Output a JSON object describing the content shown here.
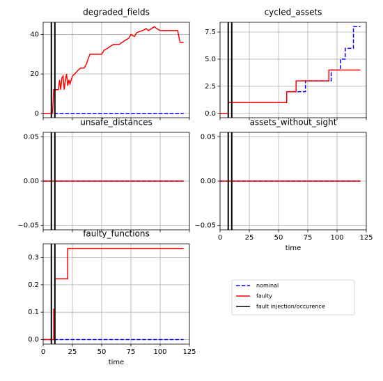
{
  "chart_data": [
    {
      "type": "line",
      "title": "degraded_fields",
      "drawstyle": "default",
      "x": [
        0,
        8,
        9,
        13,
        14,
        15,
        16,
        17,
        18,
        19,
        20,
        21,
        22,
        23,
        25,
        27,
        30,
        32,
        35,
        37,
        38,
        40,
        50,
        52,
        55,
        60,
        65,
        70,
        73,
        75,
        78,
        80,
        85,
        88,
        90,
        95,
        97,
        100,
        115,
        117,
        120
      ],
      "series": [
        {
          "name": "nominal",
          "color": "#0000ff",
          "dashed": true,
          "values": [
            0,
            0,
            0,
            0,
            0,
            0,
            0,
            0,
            0,
            0,
            0,
            0,
            0,
            0,
            0,
            0,
            0,
            0,
            0,
            0,
            0,
            0,
            0,
            0,
            0,
            0,
            0,
            0,
            0,
            0,
            0,
            0,
            0,
            0,
            0,
            0,
            0,
            0,
            0,
            0,
            0
          ]
        },
        {
          "name": "faulty",
          "color": "#ff0000",
          "dashed": false,
          "values": [
            0,
            0,
            12,
            12,
            17,
            12,
            18,
            19,
            12,
            17,
            20,
            14,
            17,
            15,
            19,
            20,
            22,
            23,
            23,
            25,
            27,
            30,
            30,
            32,
            33,
            35,
            35,
            37,
            38,
            40,
            39,
            41,
            42,
            43,
            42,
            44,
            43,
            42,
            42,
            36,
            36
          ]
        }
      ],
      "xlim": [
        0,
        125
      ],
      "xticks": [
        0,
        25,
        50,
        75,
        100,
        125
      ],
      "show_xticklabels": false,
      "ylim": [
        -2.2,
        46.2
      ],
      "yticks": [
        0,
        20,
        40
      ],
      "grid": true
    },
    {
      "type": "line",
      "title": "cycled_assets",
      "drawstyle": "steps-post",
      "x": [
        0,
        7,
        57,
        65,
        73,
        93,
        95,
        103,
        107,
        114,
        120
      ],
      "series": [
        {
          "name": "nominal",
          "color": "#0000ff",
          "dashed": true,
          "values": [
            0,
            1,
            2,
            2,
            3,
            3,
            4,
            5,
            6,
            8,
            8
          ]
        },
        {
          "name": "faulty",
          "color": "#ff0000",
          "dashed": false,
          "values": [
            0,
            1,
            2,
            3,
            3,
            4,
            4,
            4,
            4,
            4,
            4
          ]
        }
      ],
      "xlim": [
        0,
        125
      ],
      "xticks": [
        0,
        25,
        50,
        75,
        100,
        125
      ],
      "show_xticklabels": false,
      "ylim": [
        -0.4,
        8.4
      ],
      "yticks": [
        {
          "value": 0,
          "label": "0.0"
        },
        2.5,
        {
          "value": 5,
          "label": "5.0"
        },
        7.5
      ],
      "grid": true
    },
    {
      "type": "line",
      "title": "unsafe_distances",
      "drawstyle": "default",
      "x": [
        0,
        120
      ],
      "series": [
        {
          "name": "nominal",
          "color": "#0000ff",
          "dashed": true,
          "values": [
            0,
            0
          ]
        },
        {
          "name": "faulty",
          "color": "#ff0000",
          "dashed": false,
          "values": [
            0,
            0
          ]
        }
      ],
      "xlim": [
        0,
        125
      ],
      "xticks": [
        0,
        25,
        50,
        75,
        100,
        125
      ],
      "show_xticklabels": false,
      "ylim": [
        -0.055,
        0.055
      ],
      "yticks": [
        {
          "value": -0.05,
          "label": "−0.05"
        },
        {
          "value": 0,
          "label": "0.00"
        },
        0.05
      ],
      "grid": true
    },
    {
      "type": "line",
      "title": "assets_without_sight",
      "drawstyle": "default",
      "xlabel": "time",
      "x": [
        0,
        120
      ],
      "series": [
        {
          "name": "nominal",
          "color": "#0000ff",
          "dashed": true,
          "values": [
            0,
            0
          ]
        },
        {
          "name": "faulty",
          "color": "#ff0000",
          "dashed": false,
          "values": [
            0,
            0
          ]
        }
      ],
      "xlim": [
        0,
        125
      ],
      "xticks": [
        0,
        25,
        50,
        75,
        100,
        125
      ],
      "show_xticklabels": true,
      "ylim": [
        -0.055,
        0.055
      ],
      "yticks": [
        {
          "value": -0.05,
          "label": "−0.05"
        },
        {
          "value": 0,
          "label": "0.00"
        },
        0.05
      ],
      "grid": true
    },
    {
      "type": "line",
      "title": "faulty_functions",
      "drawstyle": "steps-post",
      "xlabel": "time",
      "x": [
        0,
        9,
        10,
        21,
        120
      ],
      "series": [
        {
          "name": "nominal",
          "color": "#0000ff",
          "dashed": true,
          "values": [
            0,
            0,
            0,
            0,
            0
          ]
        },
        {
          "name": "faulty",
          "color": "#ff0000",
          "dashed": false,
          "values": [
            0,
            0.111,
            0.222,
            0.333,
            0.333
          ]
        }
      ],
      "xlim": [
        0,
        125
      ],
      "xticks": [
        0,
        25,
        50,
        75,
        100,
        125
      ],
      "show_xticklabels": true,
      "ylim": [
        -0.0167,
        0.35
      ],
      "yticks": [
        {
          "value": 0,
          "label": "0.0"
        },
        0.1,
        0.2,
        0.3
      ],
      "grid": true
    }
  ],
  "fault_injection": {
    "label": "fault injection/occurence",
    "color": "#000000",
    "x": [
      7,
      10
    ]
  }
}
